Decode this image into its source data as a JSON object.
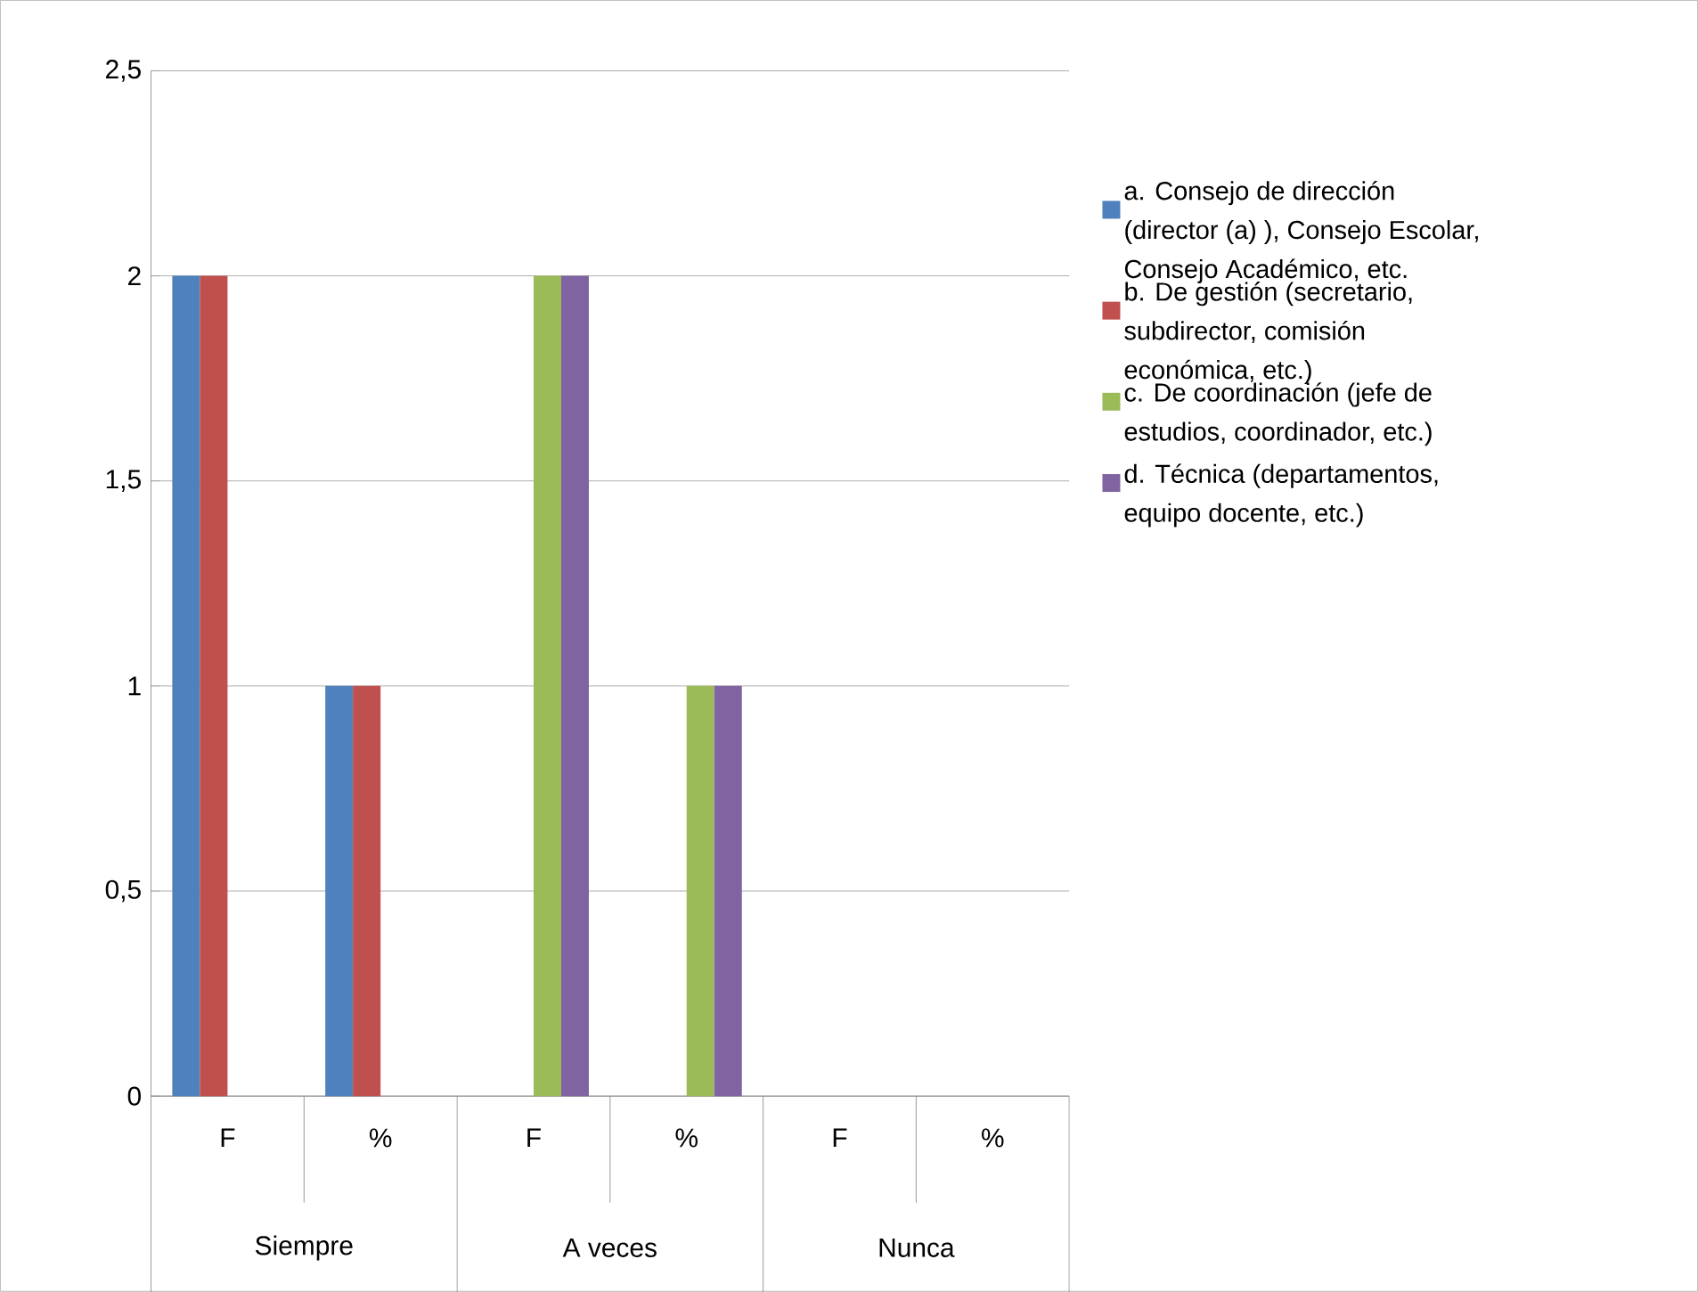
{
  "chart_data": {
    "type": "bar",
    "categories": [
      "F",
      "%",
      "F",
      "%",
      "F",
      "%"
    ],
    "annotations": [
      "Siempre",
      "A veces",
      "Nunca"
    ],
    "series": [
      {
        "name": "a. Consejo de dirección (director (a) ), Consejo Escolar, Consejo Académico, etc.",
        "color": "#4f81bd",
        "values": [
          2,
          1,
          0,
          0,
          0,
          0
        ]
      },
      {
        "name": "b. De gestión (secretario, subdirector, comisión económica, etc.)",
        "color": "#c0504d",
        "values": [
          2,
          1,
          0,
          0,
          0,
          0
        ]
      },
      {
        "name": "c. De coordinación (jefe de estudios, coordinador, etc.)",
        "color": "#9bbb59",
        "values": [
          0,
          0,
          2,
          1,
          0,
          0
        ]
      },
      {
        "name": "d. Técnica (departamentos, equipo docente, etc.)",
        "color": "#8064a2",
        "values": [
          0,
          0,
          2,
          1,
          0,
          0
        ]
      }
    ],
    "ylim": [
      0,
      2.5
    ],
    "yticks": [
      0,
      {
        "value": 0.5,
        "label": "0,5"
      },
      1,
      {
        "value": 1.5,
        "label": "1,5"
      },
      2,
      {
        "value": 2.5,
        "label": "2,5"
      }
    ],
    "grid": "y",
    "legend": "right"
  }
}
